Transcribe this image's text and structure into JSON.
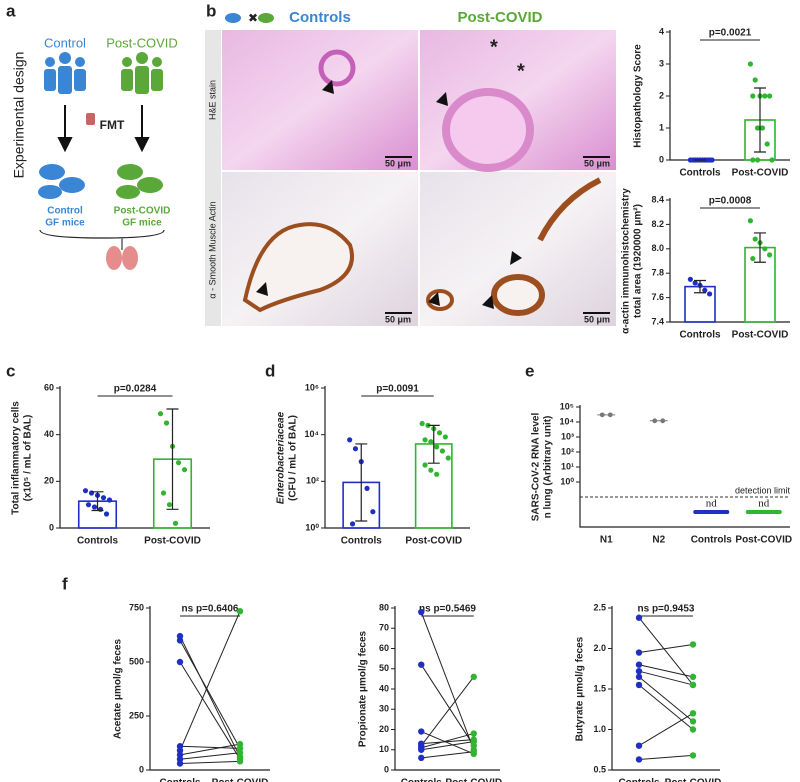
{
  "panel_labels": [
    "a",
    "b",
    "c",
    "d",
    "e",
    "f"
  ],
  "design": {
    "title": "Experimental design",
    "groups": [
      "Control",
      "Post-COVID"
    ],
    "transfer": "FMT",
    "mice": [
      [
        "Control",
        "GF mice"
      ],
      [
        "Post-COVID",
        "GF mice"
      ]
    ]
  },
  "histology": {
    "columns": [
      "Controls",
      "Post-COVID"
    ],
    "rows": [
      "H&E stain",
      "α - Smooth Muscle Actin"
    ],
    "scale_bar": "50 μm"
  },
  "chart_data": [
    {
      "type": "bar",
      "ylabel": [
        "Histopathology Score"
      ],
      "categories": [
        "Controls",
        "Post-COVID"
      ],
      "colors": [
        "#1f2fc4",
        "#2fb52f"
      ],
      "values": [
        0,
        1.25
      ],
      "error_ranges": [
        [
          0,
          0
        ],
        [
          0.25,
          2.25
        ]
      ],
      "points": [
        [
          0,
          0,
          0,
          0,
          0,
          0,
          0,
          0,
          0,
          0
        ],
        [
          3,
          2.5,
          2,
          2,
          2,
          2,
          1,
          1,
          0.5,
          0,
          0,
          0
        ]
      ],
      "ylim": [
        0,
        4
      ],
      "yticks": [
        0,
        1,
        2,
        3,
        4
      ],
      "annotation": "p=0.0021"
    },
    {
      "type": "bar",
      "ylabel": [
        "α-actin immunohistochemistry",
        "total area (1920000 μm²)"
      ],
      "categories": [
        "Controls",
        "Post-COVID"
      ],
      "colors": [
        "#1f2fc4",
        "#2fb52f"
      ],
      "values": [
        7.69,
        8.01
      ],
      "error_ranges": [
        [
          7.64,
          7.74
        ],
        [
          7.89,
          8.13
        ]
      ],
      "points": [
        [
          7.75,
          7.72,
          7.7,
          7.66,
          7.63
        ],
        [
          8.23,
          8.08,
          8.05,
          8.0,
          7.95,
          7.92
        ]
      ],
      "ylim": [
        7.4,
        8.4
      ],
      "yticks": [
        7.4,
        7.6,
        7.8,
        {
          "value": 8,
          "label": "8.0"
        },
        8.2,
        8.4
      ],
      "annotation": "p=0.0008"
    },
    {
      "type": "bar",
      "ylabel": [
        "Total inflammatory cells",
        "(x10⁵ / mL of BAL)"
      ],
      "categories": [
        "Controls",
        "Post-COVID"
      ],
      "colors": [
        "#1f2fc4",
        "#2fb52f"
      ],
      "values": [
        11.5,
        29.5
      ],
      "error_ranges": [
        [
          7.5,
          15.5
        ],
        [
          8,
          51
        ]
      ],
      "points": [
        [
          16,
          15,
          14,
          13,
          12,
          10,
          9,
          8,
          6
        ],
        [
          49,
          45,
          35,
          28,
          25,
          15,
          10,
          2
        ]
      ],
      "ylim": [
        0,
        60
      ],
      "yticks": [
        0,
        20,
        40,
        60
      ],
      "annotation": "p=0.0284"
    },
    {
      "type": "bar",
      "log": true,
      "ylabel": [
        "Enterobacteriaceae",
        "(CFU / mL of BAL)"
      ],
      "categories": [
        "Controls",
        "Post-COVID"
      ],
      "colors": [
        "#1f2fc4",
        "#2fb52f"
      ],
      "values": [
        90,
        4000
      ],
      "error_ranges": [
        [
          2,
          4000
        ],
        [
          600,
          25000
        ]
      ],
      "points": [
        [
          6000,
          2500,
          700,
          50,
          5,
          1.5
        ],
        [
          30000,
          25000,
          18000,
          12000,
          8000,
          6000,
          5000,
          3000,
          2000,
          1000,
          500,
          300,
          200
        ]
      ],
      "ylim": [
        1,
        1000000
      ],
      "yticks": [
        {
          "value": 1,
          "label": "10⁰"
        },
        {
          "value": 100,
          "label": "10²"
        },
        {
          "value": 10000,
          "label": "10⁴"
        },
        {
          "value": 1000000,
          "label": "10⁶"
        }
      ],
      "annotation": "p=0.0091"
    },
    {
      "type": "scatter",
      "log": true,
      "ylabel": [
        "SARS-CoV-2 RNA level",
        "n lung (Arbitrary unit)"
      ],
      "categories": [
        "N1",
        "N2",
        "Controls",
        "Post-COVID"
      ],
      "colors": [
        "#777777",
        "#777777",
        "#1f2fc4",
        "#2fb52f"
      ],
      "points": [
        [
          30000,
          30000
        ],
        [
          12000,
          12000
        ],
        null,
        null
      ],
      "notes": [
        null,
        null,
        "nd",
        "nd"
      ],
      "detection_limit": 0.1,
      "detection_label": "detection limit",
      "ylim": [
        0.001,
        100000
      ],
      "yticks": [
        {
          "value": 1,
          "label": "10⁰"
        },
        {
          "value": 10,
          "label": "10¹"
        },
        {
          "value": 100,
          "label": "10²"
        },
        {
          "value": 1000,
          "label": "10³"
        },
        {
          "value": 10000,
          "label": "10⁴"
        },
        {
          "value": 100000,
          "label": "10⁵"
        }
      ]
    },
    {
      "type": "paired",
      "ylabel": [
        "Acetate μmol/g feces"
      ],
      "categories": [
        "Controls",
        "Post-COVID"
      ],
      "colors": [
        "#1f2fc4",
        "#2fb52f"
      ],
      "points": [
        [
          620,
          600,
          500,
          90,
          70,
          50,
          30,
          110
        ],
        [
          60,
          100,
          50,
          735,
          120,
          80,
          40,
          100
        ]
      ],
      "ylim": [
        0,
        750
      ],
      "yticks": [
        0,
        250,
        500,
        750
      ],
      "annotation": "ns p=0.6406"
    },
    {
      "type": "paired",
      "ylabel": [
        "Propionate μmol/g feces"
      ],
      "categories": [
        "Controls",
        "Post-COVID"
      ],
      "colors": [
        "#1f2fc4",
        "#2fb52f"
      ],
      "points": [
        [
          78,
          52,
          19,
          12,
          13,
          11,
          10,
          6
        ],
        [
          10,
          12,
          8,
          46,
          15,
          18,
          14,
          9
        ]
      ],
      "ylim": [
        0,
        80
      ],
      "yticks": [
        0,
        10,
        20,
        30,
        40,
        50,
        60,
        70,
        80
      ],
      "annotation": "ns p=0.5469"
    },
    {
      "type": "paired",
      "ylabel": [
        "Butyrate μmol/g feces"
      ],
      "categories": [
        "Controls",
        "Post-COVID"
      ],
      "colors": [
        "#1f2fc4",
        "#2fb52f"
      ],
      "points": [
        [
          2.38,
          1.95,
          1.8,
          1.72,
          1.65,
          1.55,
          0.8,
          0.63
        ],
        [
          1.55,
          2.05,
          1.65,
          1.55,
          1.1,
          1.0,
          1.2,
          0.68
        ]
      ],
      "ylim": [
        0.5,
        2.5
      ],
      "yticks": [
        0.5,
        {
          "value": 1,
          "label": "1.0"
        },
        1.5,
        {
          "value": 2,
          "label": "2.0"
        },
        2.5
      ],
      "annotation": "ns p=0.9453"
    }
  ]
}
